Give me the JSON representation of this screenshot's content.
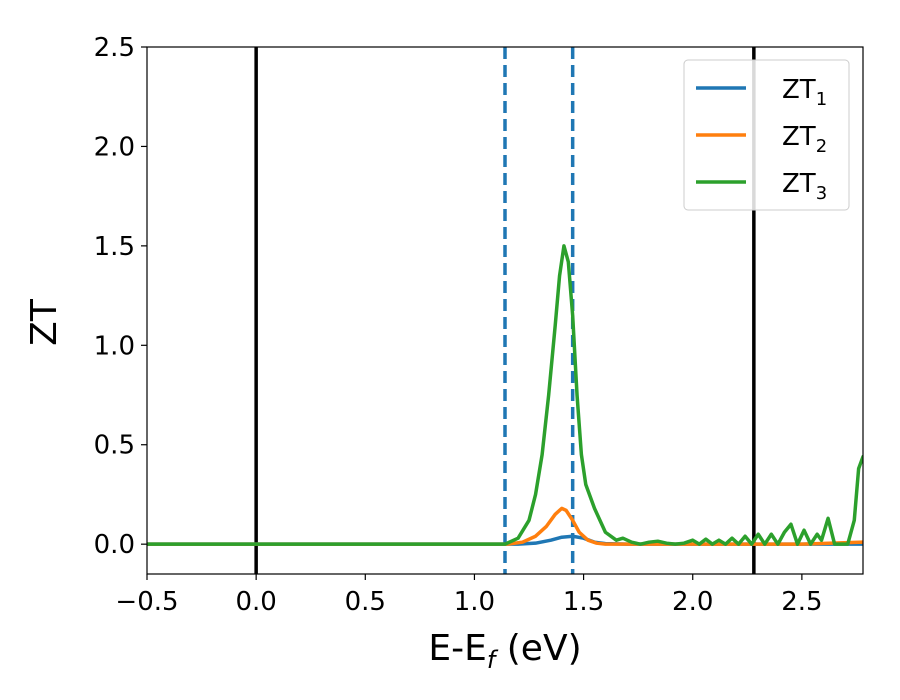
{
  "chart_data": {
    "type": "line",
    "xlabel_main": "E-E",
    "xlabel_sub": "f",
    "xlabel_unit": " (eV)",
    "ylabel": "ZT",
    "xlim": [
      -0.5,
      2.78
    ],
    "ylim": [
      -0.15,
      2.5
    ],
    "xticks": [
      -0.5,
      0.0,
      0.5,
      1.0,
      1.5,
      2.0,
      2.5
    ],
    "xtick_labels": [
      "−0.5",
      "0.0",
      "0.5",
      "1.0",
      "1.5",
      "2.0",
      "2.5"
    ],
    "yticks": [
      0.0,
      0.5,
      1.0,
      1.5,
      2.0,
      2.5
    ],
    "ytick_labels": [
      "0.0",
      "0.5",
      "1.0",
      "1.5",
      "2.0",
      "2.5"
    ],
    "legend_position": "top-right",
    "vlines": [
      {
        "x": 0.0,
        "style": "solid",
        "color": "#000000"
      },
      {
        "x": 2.28,
        "style": "solid",
        "color": "#000000"
      },
      {
        "x": 1.14,
        "style": "dashed",
        "color": "#1f77b4"
      },
      {
        "x": 1.45,
        "style": "dashed",
        "color": "#1f77b4"
      }
    ],
    "series": [
      {
        "name": "ZT",
        "sub": "1",
        "color": "#1f77b4",
        "x": [
          -0.5,
          1.2,
          1.28,
          1.35,
          1.4,
          1.45,
          1.5,
          1.55,
          1.6,
          1.7,
          2.0,
          2.78
        ],
        "y": [
          0.0,
          0.0,
          0.005,
          0.02,
          0.035,
          0.04,
          0.03,
          0.01,
          0.003,
          0.0,
          0.0,
          0.0
        ]
      },
      {
        "name": "ZT",
        "sub": "2",
        "color": "#ff7f0e",
        "x": [
          -0.5,
          1.15,
          1.22,
          1.28,
          1.33,
          1.37,
          1.4,
          1.42,
          1.45,
          1.48,
          1.52,
          1.56,
          1.6,
          1.7,
          2.0,
          2.5,
          2.78
        ],
        "y": [
          0.0,
          0.0,
          0.01,
          0.04,
          0.09,
          0.15,
          0.18,
          0.17,
          0.12,
          0.06,
          0.02,
          0.005,
          0.0,
          0.0,
          0.0,
          0.0,
          0.01
        ]
      },
      {
        "name": "ZT",
        "sub": "3",
        "color": "#2ca02c",
        "x": [
          -0.5,
          1.14,
          1.2,
          1.25,
          1.28,
          1.31,
          1.34,
          1.37,
          1.39,
          1.41,
          1.43,
          1.45,
          1.47,
          1.49,
          1.51,
          1.55,
          1.6,
          1.65,
          1.68,
          1.72,
          1.76,
          1.8,
          1.84,
          1.88,
          1.92,
          1.96,
          2.0,
          2.03,
          2.06,
          2.09,
          2.12,
          2.15,
          2.18,
          2.21,
          2.24,
          2.27,
          2.3,
          2.33,
          2.36,
          2.39,
          2.42,
          2.45,
          2.48,
          2.51,
          2.54,
          2.57,
          2.59,
          2.62,
          2.65,
          2.68,
          2.71,
          2.74,
          2.76,
          2.78
        ],
        "y": [
          0.0,
          0.0,
          0.03,
          0.12,
          0.25,
          0.45,
          0.75,
          1.1,
          1.35,
          1.5,
          1.42,
          1.15,
          0.75,
          0.45,
          0.3,
          0.18,
          0.06,
          0.02,
          0.03,
          0.01,
          0.0,
          0.01,
          0.015,
          0.005,
          0.0,
          0.005,
          0.02,
          0.0,
          0.025,
          0.0,
          0.02,
          0.0,
          0.03,
          0.0,
          0.04,
          0.0,
          0.05,
          0.0,
          0.05,
          0.0,
          0.06,
          0.1,
          0.0,
          0.07,
          0.0,
          0.05,
          0.02,
          0.13,
          0.0,
          0.0,
          0.0,
          0.12,
          0.38,
          0.44
        ]
      }
    ]
  }
}
